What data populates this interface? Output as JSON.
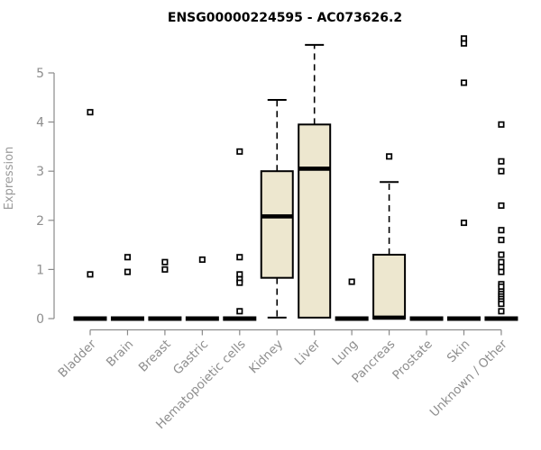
{
  "page": {
    "background": "#ffffff"
  },
  "chart_data": {
    "type": "boxplot",
    "title": "ENSG00000224595 - AC073626.2",
    "xlabel": "",
    "ylabel": "Expression",
    "ylim": [
      0,
      5.75
    ],
    "yticks": [
      0,
      1,
      2,
      3,
      4,
      5
    ],
    "grid": false,
    "legend": "none",
    "categories": [
      "Bladder",
      "Brain",
      "Breast",
      "Gastric",
      "Hematopoietic cells",
      "Kidney",
      "Liver",
      "Lung",
      "Pancreas",
      "Prostate",
      "Skin",
      "Unknown / Other"
    ],
    "series": [
      {
        "name": "Bladder",
        "whislo": 0,
        "q1": 0,
        "med": 0,
        "q3": 0,
        "whishi": 0,
        "outliers": [
          4.2,
          0.9
        ]
      },
      {
        "name": "Brain",
        "whislo": 0,
        "q1": 0,
        "med": 0,
        "q3": 0,
        "whishi": 0,
        "outliers": [
          1.25,
          0.95
        ]
      },
      {
        "name": "Breast",
        "whislo": 0,
        "q1": 0,
        "med": 0,
        "q3": 0,
        "whishi": 0,
        "outliers": [
          1.15,
          1.0
        ]
      },
      {
        "name": "Gastric",
        "whislo": 0,
        "q1": 0,
        "med": 0,
        "q3": 0,
        "whishi": 0,
        "outliers": [
          1.2
        ]
      },
      {
        "name": "Hematopoietic cells",
        "whislo": 0,
        "q1": 0,
        "med": 0,
        "q3": 0,
        "whishi": 0,
        "outliers": [
          3.4,
          1.25,
          0.9,
          0.8,
          0.73,
          0.15
        ]
      },
      {
        "name": "Kidney",
        "whislo": 0.02,
        "q1": 0.83,
        "med": 2.08,
        "q3": 3.0,
        "whishi": 4.45,
        "outliers": []
      },
      {
        "name": "Liver",
        "whislo": 0.02,
        "q1": 0.02,
        "med": 3.05,
        "q3": 3.95,
        "whishi": 5.57,
        "outliers": []
      },
      {
        "name": "Lung",
        "whislo": 0,
        "q1": 0,
        "med": 0,
        "q3": 0,
        "whishi": 0,
        "outliers": [
          0.75
        ]
      },
      {
        "name": "Pancreas",
        "whislo": 0,
        "q1": 0,
        "med": 0.02,
        "q3": 1.3,
        "whishi": 2.78,
        "outliers": [
          3.3
        ]
      },
      {
        "name": "Prostate",
        "whislo": 0,
        "q1": 0,
        "med": 0,
        "q3": 0,
        "whishi": 0,
        "outliers": []
      },
      {
        "name": "Skin",
        "whislo": 0,
        "q1": 0,
        "med": 0,
        "q3": 0,
        "whishi": 0,
        "outliers": [
          5.7,
          5.6,
          4.8,
          1.95
        ]
      },
      {
        "name": "Unknown / Other",
        "whislo": 0,
        "q1": 0,
        "med": 0,
        "q3": 0,
        "whishi": 0,
        "outliers": [
          3.95,
          3.2,
          3.0,
          2.3,
          1.8,
          1.6,
          1.3,
          1.15,
          1.05,
          0.95,
          0.7,
          0.65,
          0.55,
          0.5,
          0.45,
          0.4,
          0.35,
          0.3,
          0.15
        ]
      }
    ],
    "style": {
      "box_fill": "#EDE7CF",
      "box_border": "#000000",
      "median_color": "#000000",
      "whisker_style": "dashed",
      "outlier_marker": "open-square",
      "outlier_fill": "#ffffff",
      "axis_color": "#8A8A8A",
      "tick_label_color": "#8E8E8E",
      "title_color": "#000000"
    }
  }
}
